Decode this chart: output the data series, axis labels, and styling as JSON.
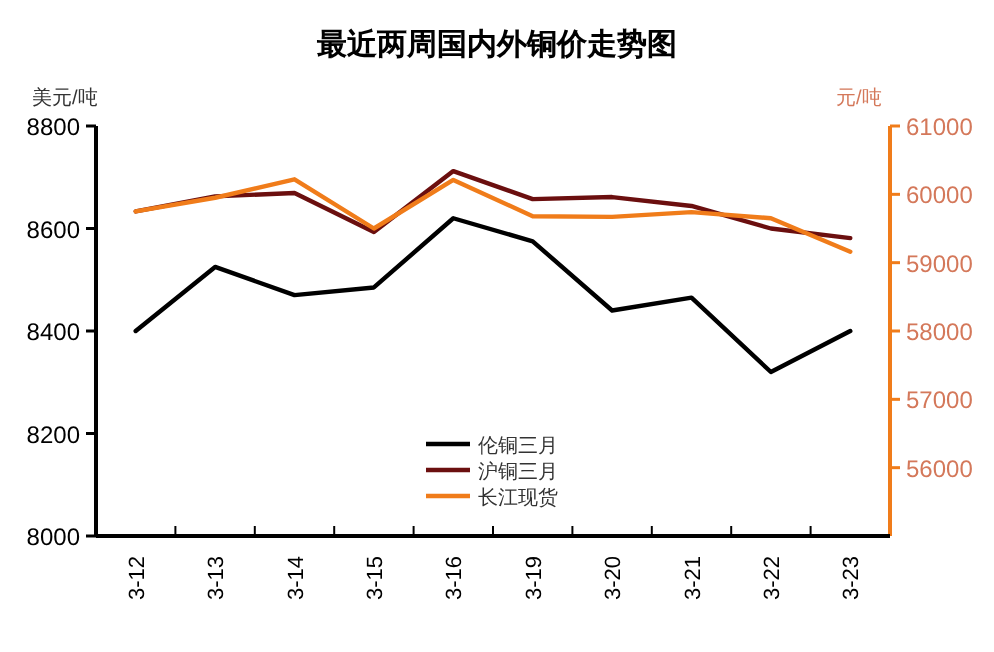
{
  "chart_data": {
    "type": "line",
    "title": "最近两周国内外铜价走势图",
    "ylabel": "美元/吨",
    "y2label": "元/吨",
    "categories": [
      "3-12",
      "3-13",
      "3-14",
      "3-15",
      "3-16",
      "3-19",
      "3-20",
      "3-21",
      "3-22",
      "3-23"
    ],
    "ylim": [
      8000,
      8800
    ],
    "yticks": [
      8000,
      8200,
      8400,
      8600,
      8800
    ],
    "y2lim": [
      55000,
      61000
    ],
    "y2ticks": [
      56000,
      57000,
      58000,
      59000,
      60000,
      61000
    ],
    "grid": false,
    "legend": "bottom right",
    "marker": "none",
    "line_style": "solid",
    "series": [
      {
        "name": "伦铜三月",
        "color": "#000000",
        "values": [
          8400,
          8525,
          8470,
          8485,
          8620,
          8575,
          8440,
          8465,
          8320,
          8400
        ]
      },
      {
        "name": "沪铜三月",
        "color": "#6b0f0f",
        "axis": "y2",
        "values": [
          59750,
          59970,
          60020,
          59450,
          60340,
          59930,
          59960,
          59830,
          59500,
          59360
        ]
      },
      {
        "name": "长江现货",
        "color": "#f07c1a",
        "axis": "y2",
        "values": [
          59750,
          59950,
          60220,
          59500,
          60210,
          59680,
          59670,
          59740,
          59650,
          59160
        ]
      }
    ]
  }
}
